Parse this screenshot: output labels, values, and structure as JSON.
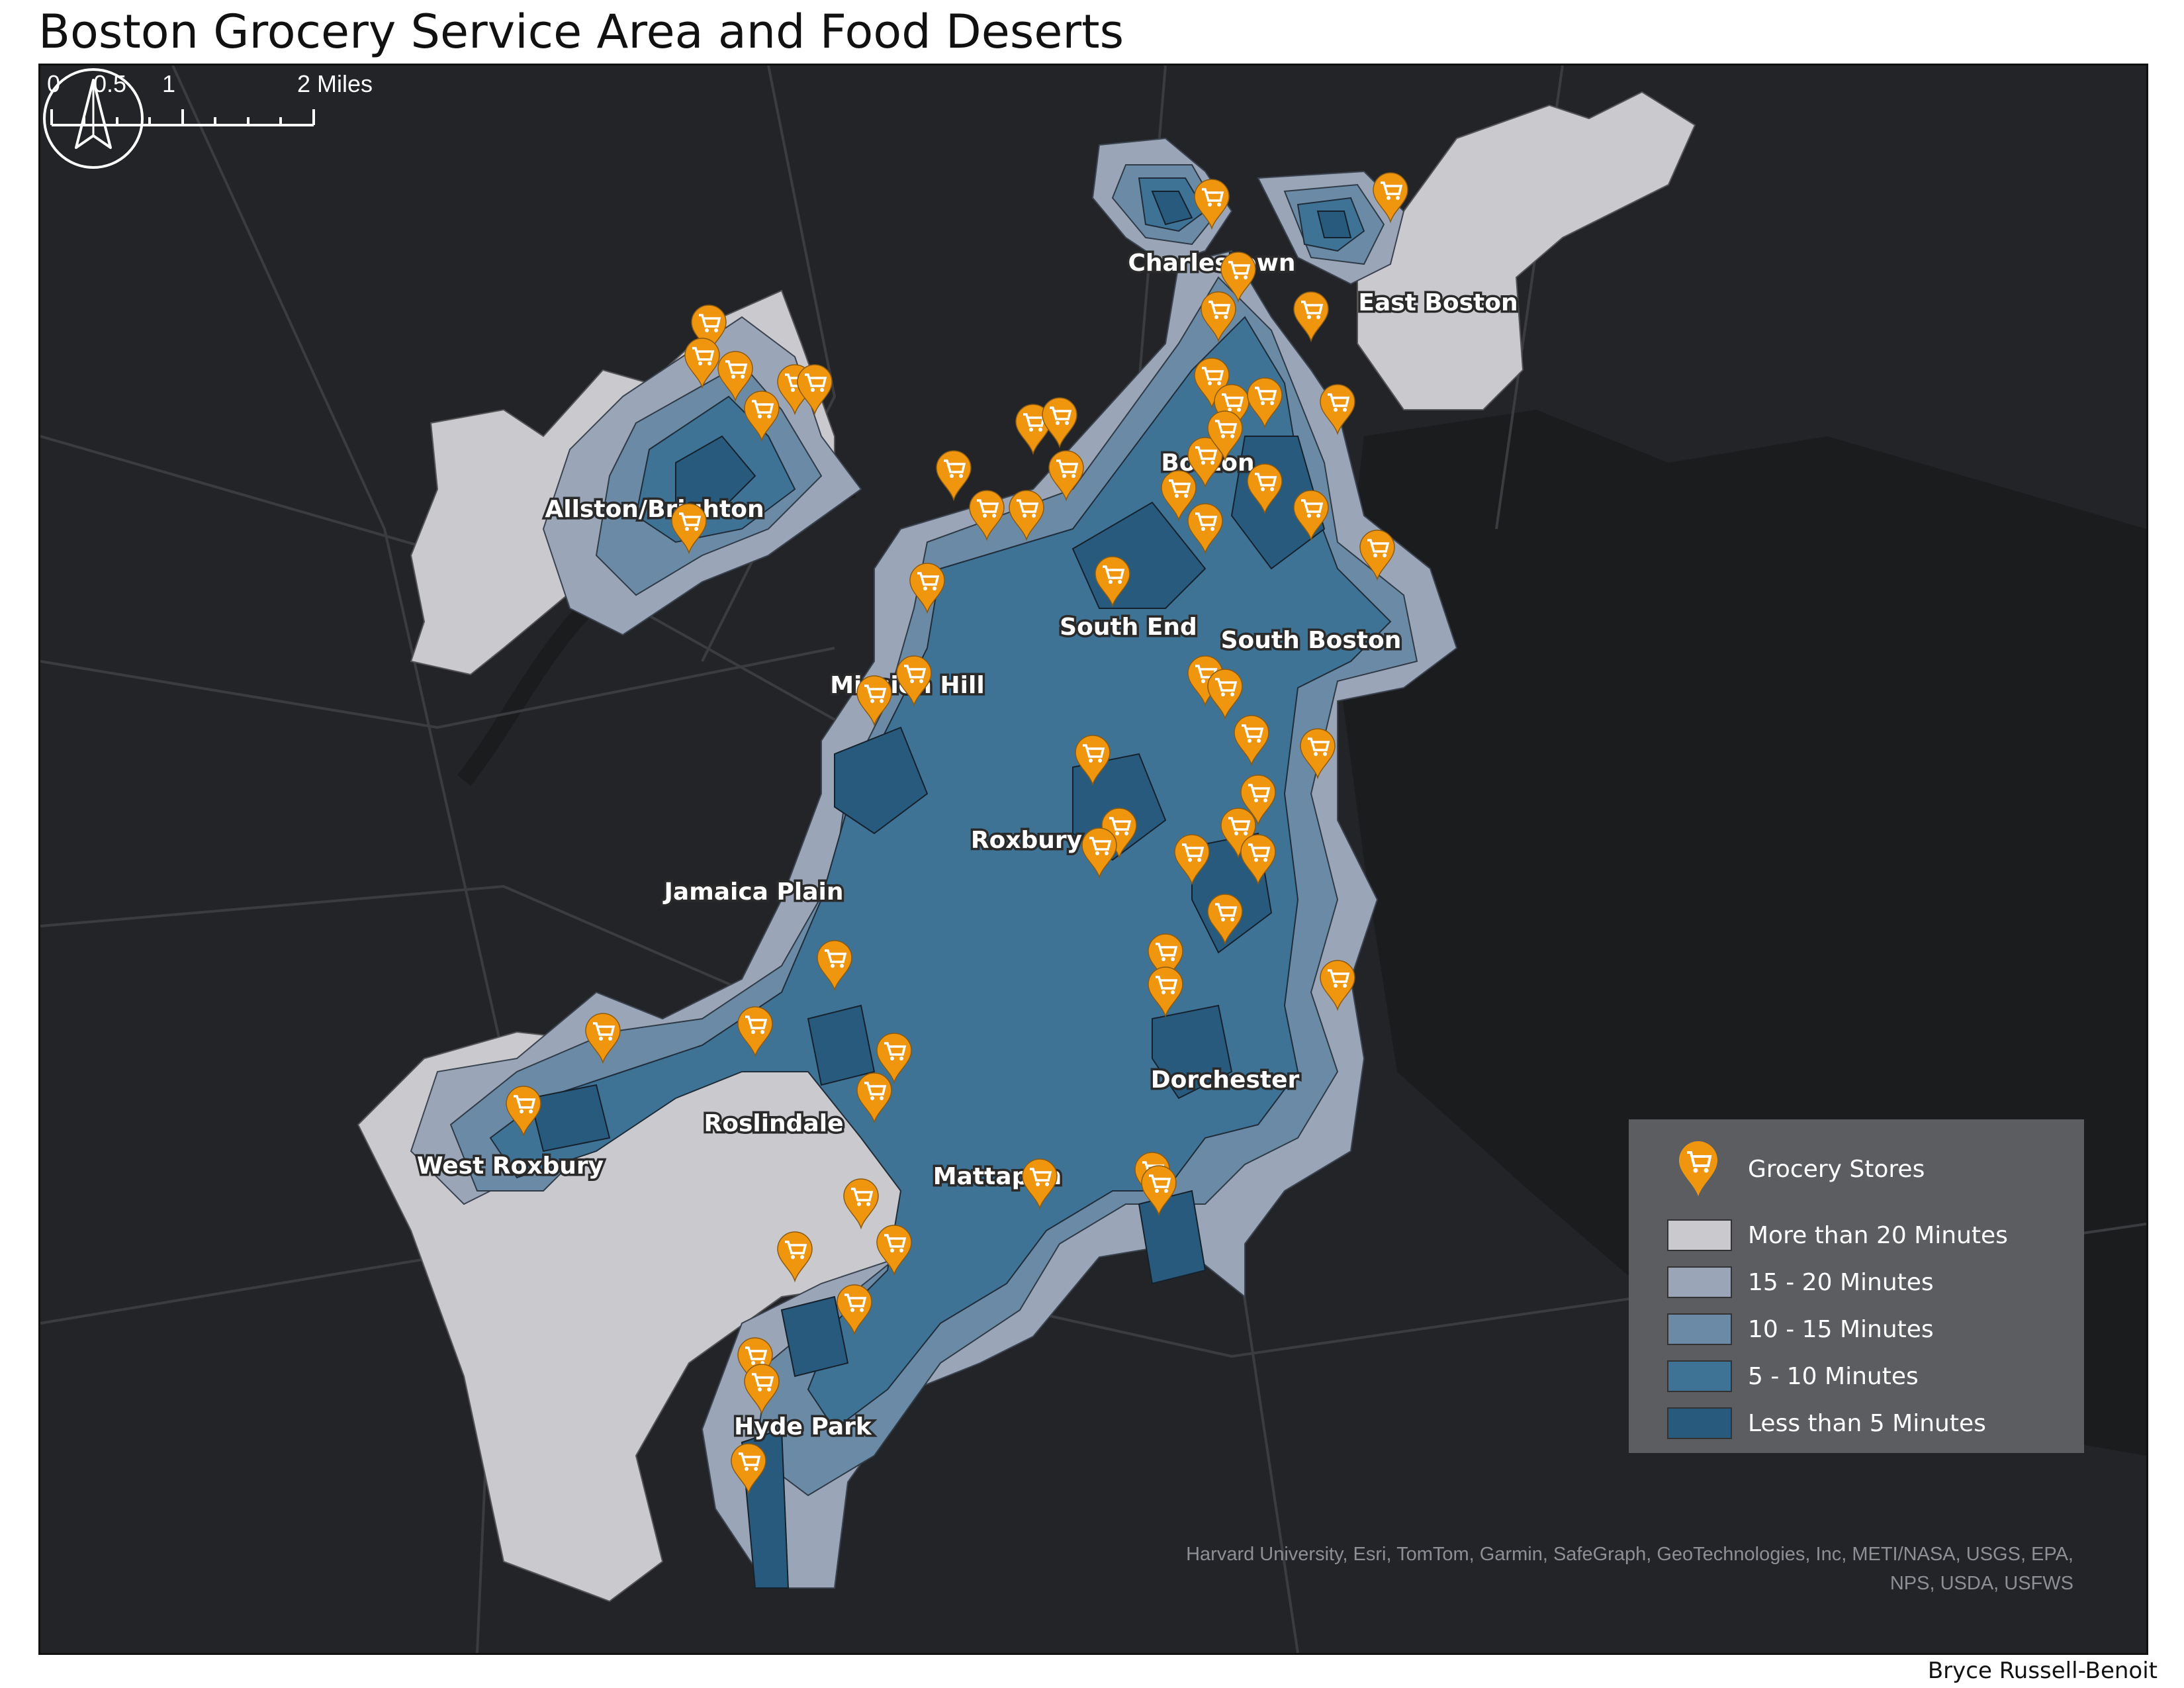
{
  "title": "Boston Grocery Service Area and Food Deserts",
  "author": "Bryce Russell-Benoit",
  "credit_lines": [
    "Harvard University, Esri, TomTom, Garmin, SafeGraph, GeoTechnologies, Inc, METI/NASA, USGS, EPA,",
    "NPS, USDA, USFWS"
  ],
  "north_arrow_icon": "north-arrow-icon",
  "scale_bar": {
    "labels": [
      "0",
      "0.5",
      "1",
      "2 Miles"
    ]
  },
  "neighborhoods": [
    "Charlestown",
    "East Boston",
    "Boston",
    "Allston/Brighton",
    "South End",
    "South Boston",
    "Mission Hill",
    "Roxbury",
    "Jamaica Plain",
    "Dorchester",
    "West Roxbury",
    "Roslindale",
    "Mattapan",
    "Hyde Park"
  ],
  "legend": {
    "store_label": "Grocery Stores",
    "store_icon": "grocery-store-marker-icon",
    "classes": [
      {
        "label": "More than 20 Minutes",
        "color": "#c9c9ce"
      },
      {
        "label": "15 - 20 Minutes",
        "color": "#9aa6b8"
      },
      {
        "label": "10 - 15 Minutes",
        "color": "#6b8aa6"
      },
      {
        "label": "5 - 10 Minutes",
        "color": "#3f7396"
      },
      {
        "label": "Less than 5 Minutes",
        "color": "#275a7d"
      }
    ]
  },
  "colors": {
    "basemap": "#232427",
    "water": "#1b1c1e",
    "marker": "#f0960e"
  }
}
